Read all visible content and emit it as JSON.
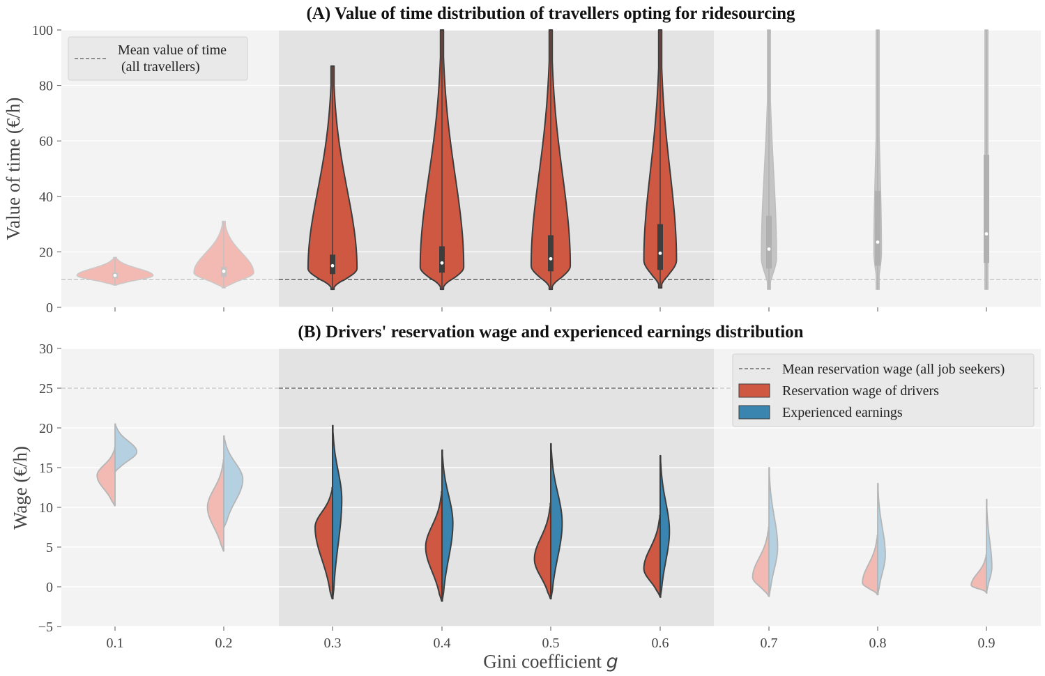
{
  "chart_data": [
    {
      "type": "violin",
      "panel": "A",
      "title": "(A) Value of time distribution of travellers opting for ridesourcing",
      "xlabel": "",
      "ylabel": "Value of time (€/h)",
      "ylim": [
        0,
        100
      ],
      "yticks": [
        "0",
        "20",
        "40",
        "60",
        "80",
        "100"
      ],
      "categories": [
        "0.1",
        "0.2",
        "0.3",
        "0.4",
        "0.5",
        "0.6",
        "0.7",
        "0.8",
        "0.9"
      ],
      "highlighted_categories": [
        "0.3",
        "0.4",
        "0.5",
        "0.6"
      ],
      "reference_line": {
        "label": "Mean value of time\n(all travellers)",
        "value": 10
      },
      "legend_position": "top-left",
      "colors": {
        "highlight": "#cf5843",
        "faded": "#f2bab2",
        "faded_grey": "#c4c4c4",
        "median": "#ffffff",
        "outline": "#3d3d3d"
      },
      "series": [
        {
          "category": "0.1",
          "min": 8,
          "max": 18,
          "q1": 10.5,
          "median": 11.5,
          "q3": 12.5,
          "mode": 11.5,
          "mode_width": 0.7
        },
        {
          "category": "0.2",
          "min": 7,
          "max": 31,
          "q1": 11,
          "median": 13,
          "q3": 14.5,
          "mode": 12.5,
          "mode_width": 0.55
        },
        {
          "category": "0.3",
          "min": 6.5,
          "max": 87,
          "q1": 12,
          "median": 15,
          "q3": 19,
          "mode": 14,
          "mode_width": 0.45
        },
        {
          "category": "0.4",
          "min": 6.5,
          "max": 100,
          "q1": 12.5,
          "median": 16,
          "q3": 22,
          "mode": 14.5,
          "mode_width": 0.4
        },
        {
          "category": "0.5",
          "min": 6.5,
          "max": 100,
          "q1": 13,
          "median": 17.5,
          "q3": 26,
          "mode": 15,
          "mode_width": 0.36
        },
        {
          "category": "0.6",
          "min": 7,
          "max": 100,
          "q1": 13.5,
          "median": 19.5,
          "q3": 30,
          "mode": 17,
          "mode_width": 0.3
        },
        {
          "category": "0.7",
          "min": 6.5,
          "max": 100,
          "q1": 14,
          "median": 21,
          "q3": 33,
          "mode": 18,
          "mode_width": 0.14
        },
        {
          "category": "0.8",
          "min": 6.5,
          "max": 100,
          "q1": 15,
          "median": 23.5,
          "q3": 42,
          "mode": 20,
          "mode_width": 0.07
        },
        {
          "category": "0.9",
          "min": 6.5,
          "max": 100,
          "q1": 16,
          "median": 26.5,
          "q3": 55,
          "mode": 22,
          "mode_width": 0.03
        }
      ]
    },
    {
      "type": "split-violin",
      "panel": "B",
      "title": "(B) Drivers' reservation wage and experienced earnings distribution",
      "xlabel": "Gini coefficient g",
      "ylabel": "Wage (€/h)",
      "ylim": [
        -5,
        30
      ],
      "yticks": [
        "−5",
        "0",
        "5",
        "10",
        "15",
        "20",
        "25",
        "30"
      ],
      "categories": [
        "0.1",
        "0.2",
        "0.3",
        "0.4",
        "0.5",
        "0.6",
        "0.7",
        "0.8",
        "0.9"
      ],
      "highlighted_categories": [
        "0.3",
        "0.4",
        "0.5",
        "0.6"
      ],
      "reference_line": {
        "label": "Mean reservation wage (all job seekers)",
        "value": 25
      },
      "legend_position": "top-right",
      "colors": {
        "reservation": "#cf5843",
        "reservation_faded": "#f2bab2",
        "earnings": "#3a84b0",
        "earnings_faded": "#b5d0e1",
        "outline": "#3d3d3d",
        "outline_faded": "#b5b5b5"
      },
      "series": [
        {
          "name": "Reservation wage of drivers",
          "side": "left",
          "values": [
            {
              "category": "0.1",
              "min": 10.2,
              "max": 17.5,
              "mode": 14,
              "mode_width": 0.33
            },
            {
              "category": "0.2",
              "min": 4.5,
              "max": 16,
              "mode": 10,
              "mode_width": 0.3
            },
            {
              "category": "0.3",
              "min": -1.5,
              "max": 12.5,
              "mode": 7.5,
              "mode_width": 0.32
            },
            {
              "category": "0.4",
              "min": -1.8,
              "max": 12,
              "mode": 5,
              "mode_width": 0.3
            },
            {
              "category": "0.5",
              "min": -1.5,
              "max": 10.5,
              "mode": 3.5,
              "mode_width": 0.3
            },
            {
              "category": "0.6",
              "min": -1.2,
              "max": 9,
              "mode": 2.3,
              "mode_width": 0.3
            },
            {
              "category": "0.7",
              "min": -1.2,
              "max": 7.5,
              "mode": 1.2,
              "mode_width": 0.3
            },
            {
              "category": "0.8",
              "min": -1,
              "max": 6.5,
              "mode": 0.5,
              "mode_width": 0.28
            },
            {
              "category": "0.9",
              "min": -0.7,
              "max": 4,
              "mode": 0.2,
              "mode_width": 0.28
            }
          ]
        },
        {
          "name": "Experienced earnings",
          "side": "right",
          "values": [
            {
              "category": "0.1",
              "min": 14.5,
              "max": 20.5,
              "mode": 17,
              "mode_width": 0.4
            },
            {
              "category": "0.2",
              "min": 7.5,
              "max": 19,
              "mode": 13.5,
              "mode_width": 0.35
            },
            {
              "category": "0.3",
              "min": -1.5,
              "max": 20.3,
              "mode": 11,
              "mode_width": 0.17
            },
            {
              "category": "0.4",
              "min": -1.8,
              "max": 17.2,
              "mode": 8,
              "mode_width": 0.2
            },
            {
              "category": "0.5",
              "min": -1.5,
              "max": 18,
              "mode": 8,
              "mode_width": 0.21
            },
            {
              "category": "0.6",
              "min": -1.3,
              "max": 16.5,
              "mode": 7,
              "mode_width": 0.17
            },
            {
              "category": "0.7",
              "min": -1.2,
              "max": 15,
              "mode": 5,
              "mode_width": 0.16
            },
            {
              "category": "0.8",
              "min": -1,
              "max": 13,
              "mode": 4,
              "mode_width": 0.14
            },
            {
              "category": "0.9",
              "min": -0.8,
              "max": 11,
              "mode": 2.5,
              "mode_width": 0.1
            }
          ]
        }
      ],
      "legend": {
        "reference": "Mean reservation wage (all job seekers)",
        "reservation": "Reservation wage of drivers",
        "earnings": "Experienced earnings"
      }
    }
  ],
  "figure": {
    "xlabel_text": "Gini coefficient",
    "xlabel_symbol": "g",
    "background": "#f3f3f3",
    "highlight_band": "#e3e3e3"
  }
}
